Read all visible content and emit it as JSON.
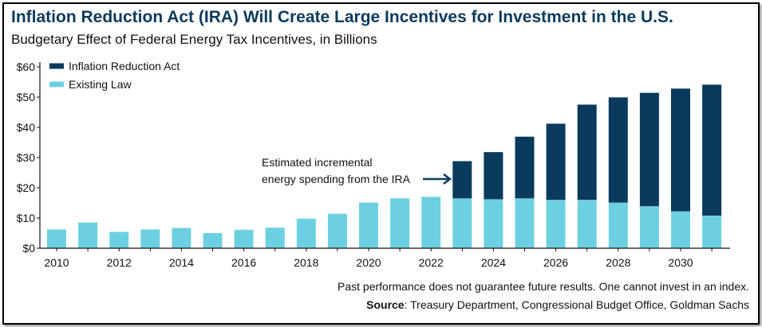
{
  "header": {
    "title": "Inflation Reduction Act (IRA) Will Create Large Incentives for Investment in the U.S.",
    "subtitle": "Budgetary Effect of Federal Energy Tax Incentives, in Billions"
  },
  "footer": {
    "note": "Past performance does not guarantee future results. One cannot invest in an index.",
    "source_label": "Source",
    "source_text": ": Treasury Department, Congressional Budget Office, Goldman Sachs"
  },
  "annotation": {
    "line1": "Estimated incremental",
    "line2": "energy spending from the IRA"
  },
  "colors": {
    "ira": "#0a3a5e",
    "existing": "#6dd0e2",
    "text": "#111111",
    "title": "#0d3a5c"
  },
  "chart_data": {
    "type": "bar",
    "stacked": true,
    "categories": [
      "2010",
      "2011",
      "2012",
      "2013",
      "2014",
      "2015",
      "2016",
      "2017",
      "2018",
      "2019",
      "2020",
      "2021",
      "2022",
      "2023",
      "2024",
      "2025",
      "2026",
      "2027",
      "2028",
      "2029",
      "2030",
      "2031"
    ],
    "x_tick_labels": [
      "2010",
      "2012",
      "2014",
      "2016",
      "2018",
      "2020",
      "2022",
      "2024",
      "2026",
      "2028",
      "2030"
    ],
    "y_tick_labels": [
      "$0",
      "$10",
      "$20",
      "$30",
      "$40",
      "$50",
      "$60"
    ],
    "ylim": [
      0,
      60
    ],
    "series": [
      {
        "name": "Existing Law",
        "color": "#6dd0e2",
        "values": [
          6.2,
          8.5,
          5.4,
          6.2,
          6.7,
          5,
          6.1,
          6.8,
          9.8,
          11.4,
          15.1,
          16.5,
          17,
          16.5,
          16.2,
          16.5,
          16,
          16,
          15.1,
          13.9,
          12.2,
          10.8
        ]
      },
      {
        "name": "Inflation Reduction Act",
        "color": "#0a3a5e",
        "values": [
          0,
          0,
          0,
          0,
          0,
          0,
          0,
          0,
          0,
          0,
          0,
          0,
          0,
          12.3,
          15.6,
          20.4,
          25.2,
          31.5,
          34.8,
          37.5,
          40.6,
          43.3
        ]
      }
    ],
    "legend": {
      "position": "top-left",
      "order": [
        "Inflation Reduction Act",
        "Existing Law"
      ]
    },
    "grid": false
  }
}
